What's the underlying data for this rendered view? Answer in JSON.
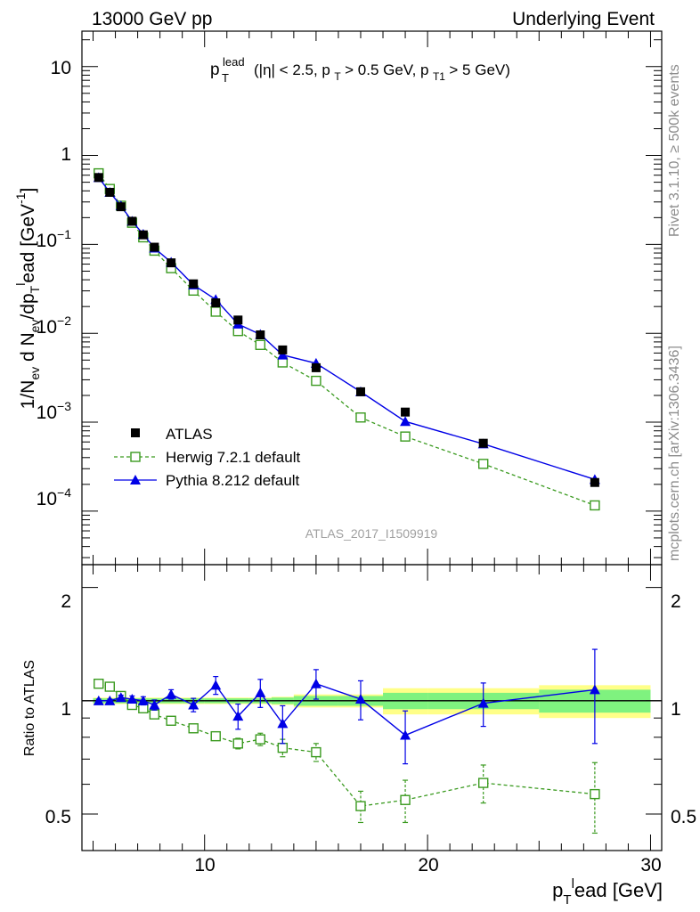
{
  "header": {
    "left": "13000 GeV pp",
    "right": "Underlying Event"
  },
  "plot_title": {
    "p": "p",
    "sup": "lead",
    "sub": "T",
    "text": "(|η| < 2.5, p_T > 0.5 GeV, p_T1 > 5 GeV)"
  },
  "side_labels": {
    "rivet": "Rivet 3.1.10, ≥ 500k events",
    "mcplots": "mcplots.cern.ch [arXiv:1306.3436]"
  },
  "watermark": "ATLAS_2017_I1509919",
  "axes": {
    "ylabel_main": "1/N_ev d N_ev/dp_T^lead [GeV^-1]",
    "ylabel_ratio": "Ratio to ATLAS",
    "xlabel": "p_T^lead [GeV]",
    "xticks": [
      "10",
      "20",
      "30"
    ],
    "yticks_main": [
      "10",
      "1",
      "10^-1",
      "10^-2",
      "10^-3",
      "10^-4"
    ],
    "yticks_ratio": [
      "2",
      "1",
      "0.5"
    ]
  },
  "legend": {
    "atlas": "ATLAS",
    "herwig": "Herwig 7.2.1 default",
    "pythia": "Pythia 8.212 default"
  },
  "colors": {
    "data": "#000000",
    "herwig": "#3a9a1f",
    "pythia": "#0000e6",
    "band_inner": "#7ff27f",
    "band_outer": "#ffff88"
  },
  "chart_data": {
    "type": "scatter",
    "x_range": [
      4.5,
      30.5
    ],
    "y_range_main": [
      2.5e-05,
      25
    ],
    "y_scale_main": "log",
    "y_range_ratio": [
      0.4,
      2.3
    ],
    "y_scale_ratio": "log",
    "x": [
      5.25,
      5.75,
      6.25,
      6.75,
      7.25,
      7.75,
      8.5,
      9.5,
      10.5,
      11.5,
      12.5,
      13.5,
      15.0,
      17.0,
      19.0,
      22.5,
      27.5
    ],
    "x_edges": [
      5.0,
      5.5,
      6.0,
      6.5,
      7.0,
      7.5,
      8.0,
      9.0,
      10.0,
      11.0,
      12.0,
      13.0,
      14.0,
      16.0,
      18.0,
      20.0,
      25.0,
      30.0
    ],
    "series": [
      {
        "name": "ATLAS",
        "values": [
          0.565,
          0.385,
          0.265,
          0.182,
          0.128,
          0.093,
          0.062,
          0.036,
          0.022,
          0.0141,
          0.0096,
          0.0065,
          0.0041,
          0.0022,
          0.0013,
          0.00058,
          0.00021
        ]
      },
      {
        "name": "Herwig 7.2.1 default",
        "values": [
          0.63,
          0.42,
          0.272,
          0.175,
          0.12,
          0.085,
          0.054,
          0.0302,
          0.0175,
          0.0106,
          0.0074,
          0.0047,
          0.00292,
          0.00113,
          0.00069,
          0.00034,
          0.000116
        ]
      },
      {
        "name": "Pythia 8.212 default",
        "values": [
          0.565,
          0.385,
          0.272,
          0.182,
          0.13,
          0.091,
          0.063,
          0.035,
          0.024,
          0.0127,
          0.0097,
          0.0057,
          0.0046,
          0.0022,
          0.00102,
          0.00057,
          0.000227
        ]
      }
    ],
    "ratio": {
      "herwig": [
        1.11,
        1.09,
        1.03,
        0.975,
        0.955,
        0.92,
        0.885,
        0.845,
        0.805,
        0.77,
        0.79,
        0.75,
        0.73,
        0.525,
        0.545,
        0.605,
        0.565
      ],
      "herwig_err": [
        0.01,
        0.01,
        0.01,
        0.01,
        0.01,
        0.012,
        0.012,
        0.015,
        0.018,
        0.025,
        0.03,
        0.04,
        0.04,
        0.05,
        0.07,
        0.07,
        0.12
      ],
      "pythia": [
        1.0,
        1.0,
        1.02,
        1.01,
        1.0,
        0.975,
        1.04,
        0.975,
        1.1,
        0.91,
        1.05,
        0.87,
        1.11,
        1.01,
        0.81,
        0.985,
        1.07
      ],
      "pythia_err": [
        0.01,
        0.01,
        0.015,
        0.02,
        0.025,
        0.03,
        0.03,
        0.04,
        0.06,
        0.07,
        0.09,
        0.1,
        0.1,
        0.12,
        0.13,
        0.13,
        0.3
      ],
      "band_inner": [
        0.015,
        0.015,
        0.015,
        0.015,
        0.015,
        0.015,
        0.015,
        0.015,
        0.015,
        0.015,
        0.015,
        0.02,
        0.03,
        0.03,
        0.05,
        0.05,
        0.07
      ],
      "band_outer": [
        0.02,
        0.02,
        0.02,
        0.02,
        0.02,
        0.02,
        0.02,
        0.02,
        0.02,
        0.02,
        0.02,
        0.025,
        0.04,
        0.04,
        0.08,
        0.08,
        0.1
      ]
    }
  }
}
